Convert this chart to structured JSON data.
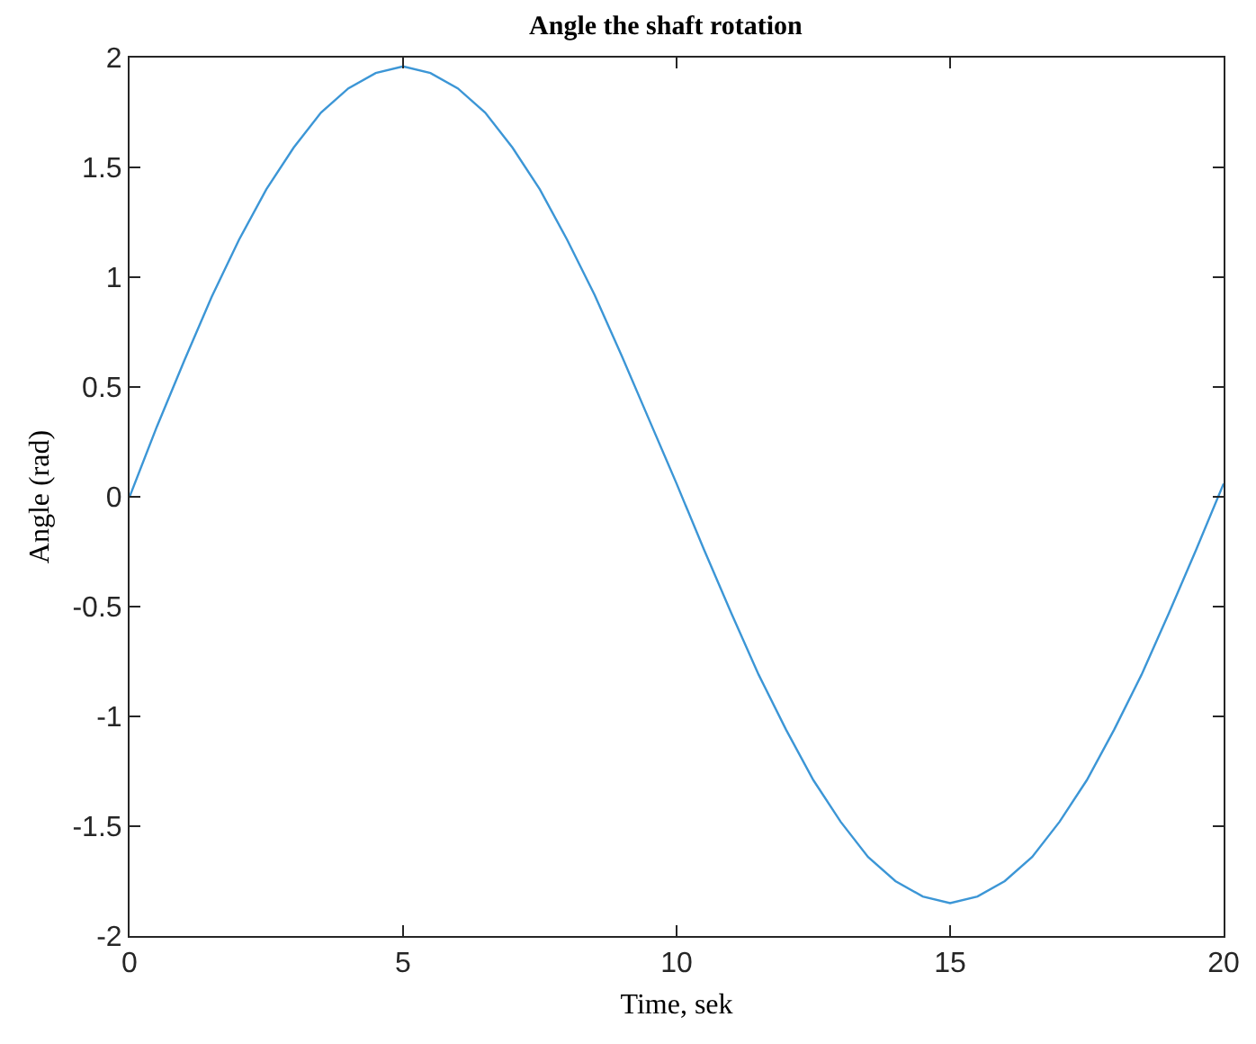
{
  "chart_data": {
    "type": "line",
    "title": "Angle the shaft rotation",
    "xlabel": "Time, sek",
    "ylabel": "Angle (rad)",
    "x": [
      0,
      0.5,
      1,
      1.5,
      2,
      2.5,
      3,
      3.5,
      4,
      4.5,
      5,
      5.5,
      6,
      6.5,
      7,
      7.5,
      8,
      8.5,
      9,
      9.5,
      10,
      10.5,
      11,
      11.5,
      12,
      12.5,
      13,
      13.5,
      14,
      14.5,
      15,
      15.5,
      16,
      16.5,
      17,
      17.5,
      18,
      18.5,
      19,
      19.5,
      20
    ],
    "series": [
      {
        "color": "#3c96d6",
        "values": [
          0,
          0.32,
          0.62,
          0.91,
          1.17,
          1.4,
          1.59,
          1.75,
          1.86,
          1.93,
          1.96,
          1.93,
          1.86,
          1.75,
          1.59,
          1.4,
          1.17,
          0.92,
          0.64,
          0.35,
          0.06,
          -0.24,
          -0.53,
          -0.81,
          -1.06,
          -1.29,
          -1.48,
          -1.64,
          -1.75,
          -1.82,
          -1.85,
          -1.82,
          -1.75,
          -1.64,
          -1.48,
          -1.29,
          -1.06,
          -0.81,
          -0.53,
          -0.24,
          0.06
        ]
      }
    ],
    "xlim": [
      0,
      20
    ],
    "xticks": [
      0,
      5,
      10,
      15,
      20
    ],
    "ylim": [
      -2,
      2
    ],
    "yticks": [
      -2,
      -1.5,
      -1,
      -0.5,
      0,
      0.5,
      1,
      1.5,
      2
    ],
    "grid": false,
    "legend": false,
    "marker": "none",
    "line_style": "solid"
  }
}
